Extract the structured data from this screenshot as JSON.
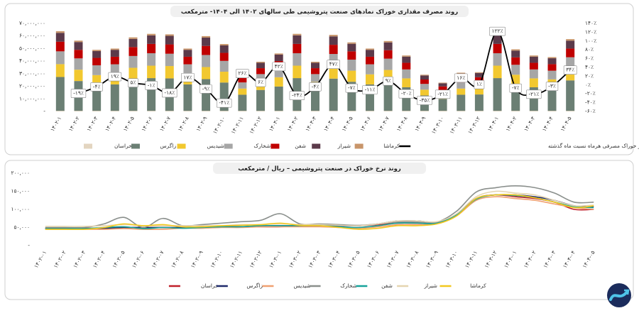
{
  "chart_data": [
    {
      "type": "bar",
      "stacked": true,
      "title": "روند مصرف مقداری خوراک نمادهای صنعت پتروشیمی طی سالهای ۱۴۰۲ الی ۱۴۰۴- مترمکعب",
      "categories": [
        "۱۴۰۲-۱",
        "۱۴۰۲-۲",
        "۱۴۰۲-۳",
        "۱۴۰۲-۴",
        "۱۴۰۲-۵",
        "۱۴۰۲-۶",
        "۱۴۰۲-۷",
        "۱۴۰۲-۸",
        "۱۴۰۲-۹",
        "۱۴۰۲-۱۰",
        "۱۴۰۲-۱۱",
        "۱۴۰۲-۱۲",
        "۱۴۰۳-۱",
        "۱۴۰۳-۲",
        "۱۴۰۳-۳",
        "۱۴۰۳-۴",
        "۱۴۰۳-۵",
        "۱۴۰۳-۶",
        "۱۴۰۳-۷",
        "۱۴۰۳-۸",
        "۱۴۰۳-۹",
        "۱۴۰۳-۱۰",
        "۱۴۰۳-۱۱",
        "۱۴۰۳-۱۲",
        "۱۴۰۴-۱",
        "۱۴۰۴-۲",
        "۱۴۰۴-۳",
        "۱۴۰۴-۴",
        "۱۴۰۴-۵"
      ],
      "series": [
        {
          "name": "خراسان",
          "color": "#e3d5c0",
          "values": [
            500000.0,
            500000.0,
            500000.0,
            500000.0,
            500000.0,
            500000.0,
            500000.0,
            500000.0,
            500000.0,
            500000.0,
            500000.0,
            500000.0,
            500000.0,
            500000.0,
            500000.0,
            500000.0,
            500000.0,
            500000.0,
            500000.0,
            500000.0,
            500000.0,
            500000.0,
            500000.0,
            500000.0,
            500000.0,
            500000.0,
            500000.0,
            500000.0,
            500000.0
          ]
        },
        {
          "name": "زاگرس",
          "color": "#6b7f74",
          "values": [
            26900000.0,
            23700000.0,
            20600000.0,
            21000000.0,
            24800000.0,
            26000000.0,
            25800000.0,
            21000000.0,
            25200000.0,
            22500000.0,
            12800000.0,
            16600000.0,
            19300000.0,
            26000000.0,
            16600000.0,
            25600000.0,
            23100000.0,
            21000000.0,
            23500000.0,
            18700000.0,
            12200000.0,
            9500000.0,
            12800000.0,
            13000000.0,
            26000000.0,
            20800000.0,
            18700000.0,
            18100000.0,
            24200000.0
          ]
        },
        {
          "name": "شیدیس",
          "color": "#f2c82f",
          "values": [
            10200000.0,
            9000000.0,
            7800000.0,
            8000000.0,
            9400000.0,
            9900000.0,
            9800000.0,
            8000000.0,
            9600000.0,
            8600000.0,
            4900000.0,
            6300000.0,
            7400000.0,
            9900000.0,
            6300000.0,
            9800000.0,
            8800000.0,
            8000000.0,
            9000000.0,
            7100000.0,
            4600000.0,
            3600000.0,
            4900000.0,
            5000000.0,
            9900000.0,
            7900000.0,
            7100000.0,
            6900000.0,
            9200000.0
          ]
        },
        {
          "name": "شخارک",
          "color": "#a6a6a6",
          "values": [
            10200000.0,
            9000000.0,
            7800000.0,
            8000000.0,
            9400000.0,
            9900000.0,
            9800000.0,
            8000000.0,
            9600000.0,
            8600000.0,
            4900000.0,
            6300000.0,
            7400000.0,
            9900000.0,
            6300000.0,
            9800000.0,
            8800000.0,
            8000000.0,
            9000000.0,
            7100000.0,
            4600000.0,
            3600000.0,
            4900000.0,
            5000000.0,
            9900000.0,
            7900000.0,
            7100000.0,
            6900000.0,
            9200000.0
          ]
        },
        {
          "name": "شفن",
          "color": "#c00000",
          "values": [
            7700000.0,
            6800000.0,
            5900000.0,
            6000000.0,
            7100000.0,
            7400000.0,
            7400000.0,
            6000000.0,
            7200000.0,
            6400000.0,
            3700000.0,
            4700000.0,
            5500000.0,
            7400000.0,
            4700000.0,
            7300000.0,
            6600000.0,
            6000000.0,
            6700000.0,
            5300000.0,
            3500000.0,
            2700000.0,
            3700000.0,
            3700000.0,
            7400000.0,
            5900000.0,
            5300000.0,
            5200000.0,
            6900000.0
          ]
        },
        {
          "name": "شیراز",
          "color": "#5b3a4a",
          "values": [
            7000000.0,
            6200000.0,
            5400000.0,
            5500000.0,
            6500000.0,
            6800000.0,
            6800000.0,
            5500000.0,
            6600000.0,
            5900000.0,
            3400000.0,
            4300000.0,
            5100000.0,
            6800000.0,
            4300000.0,
            6700000.0,
            6000000.0,
            5500000.0,
            6200000.0,
            4900000.0,
            3200000.0,
            2500000.0,
            3400000.0,
            3400000.0,
            6800000.0,
            5400000.0,
            4900000.0,
            4700000.0,
            6300000.0
          ]
        },
        {
          "name": "کرماشا",
          "color": "#c8956a",
          "values": [
            1300000.0,
            1100000.0,
            1000000.0,
            1000000.0,
            1200000.0,
            1200000.0,
            1200000.0,
            1000000.0,
            1200000.0,
            1100000.0,
            600000.0,
            800000.0,
            900000.0,
            1200000.0,
            800000.0,
            1200000.0,
            1100000.0,
            1000000.0,
            1100000.0,
            900000.0,
            600000.0,
            500000.0,
            600000.0,
            600000.0,
            1200000.0,
            1000000.0,
            900000.0,
            900000.0,
            1200000.0
          ]
        },
        {
          "name": "درصد تغییرات مقدار خوراک مصرفی هرماه نسبت ماه گذشته",
          "color": "#000000",
          "type": "line",
          "axis": "y2",
          "values": [
            null,
            -19,
            -4,
            19,
            5,
            -1,
            -18,
            17,
            -9,
            -41,
            26,
            6,
            42,
            -24,
            -4,
            47,
            -7,
            -11,
            9,
            -20,
            -35,
            -21,
            16,
            1,
            122,
            -7,
            -21,
            -3,
            34
          ],
          "value_labels": [
            null,
            "-۱۹٪",
            "-۴٪",
            "۱۹٪",
            "۵٪",
            "-۱٪",
            "-۱۸٪",
            "۱۷٪",
            "-۹٪",
            "-۴۱٪",
            "۲۶٪",
            "۶٪",
            "۴۲٪",
            "-۲۴٪",
            "-۴٪",
            "۴۷٪",
            "-۷٪",
            "-۱۱٪",
            "۹٪",
            "-۲۰٪",
            "-۳۵٪",
            "-۲۱٪",
            "۱۶٪",
            "۱٪",
            "۱۲۲٪",
            "-۷٪",
            "-۲۱٪",
            "-۳٪",
            "۳۴٪"
          ]
        }
      ],
      "ylim": [
        0,
        70000000
      ],
      "yticks": [
        {
          "value": 0,
          "label": "-"
        },
        {
          "value": 10000000,
          "label": "۱۰,۰۰۰,۰۰۰"
        },
        {
          "value": 20000000,
          "label": "۲۰,۰۰۰,۰۰۰"
        },
        {
          "value": 30000000,
          "label": "۳۰,۰۰۰,۰۰۰"
        },
        {
          "value": 40000000,
          "label": "۴۰,۰۰۰,۰۰۰"
        },
        {
          "value": 50000000,
          "label": "۵۰,۰۰۰,۰۰۰"
        },
        {
          "value": 60000000,
          "label": "۶۰,۰۰۰,۰۰۰"
        },
        {
          "value": 70000000,
          "label": "۷۰,۰۰۰,۰۰۰"
        }
      ],
      "y2lim": [
        -60,
        140
      ],
      "y2ticks": [
        {
          "value": -60,
          "label": "-۶۰٪"
        },
        {
          "value": -40,
          "label": "-۴۰٪"
        },
        {
          "value": -20,
          "label": "-۲۰٪"
        },
        {
          "value": 0,
          "label": "۰٪"
        },
        {
          "value": 20,
          "label": "۲۰٪"
        },
        {
          "value": 40,
          "label": "۴۰٪"
        },
        {
          "value": 60,
          "label": "۶۰٪"
        },
        {
          "value": 80,
          "label": "۸۰٪"
        },
        {
          "value": 100,
          "label": "۱۰۰٪"
        },
        {
          "value": 120,
          "label": "۱۲۰٪"
        },
        {
          "value": 140,
          "label": "۱۴۰٪"
        }
      ],
      "grid": false,
      "legend": "bottom"
    },
    {
      "type": "line",
      "title": "روند نرخ خوراک در صنعت پتروشیمی – ریال / مترمکعب",
      "categories": [
        "۱۴۰۲-۰۱",
        "۱۴۰۲-۰۲",
        "۱۴۰۲-۰۳",
        "۱۴۰۲-۰۴",
        "۱۴۰۲-۰۵",
        "۱۴۰۲-۰۶",
        "۱۴۰۲-۰۷",
        "۱۴۰۲-۰۸",
        "۱۴۰۲-۰۹",
        "۱۴۰۲-۱۰",
        "۱۴۰۲-۱۱",
        "۱۴۰۲-۱۲",
        "۱۴۰۳-۰۱",
        "۱۴۰۳-۰۲",
        "۱۴۰۳-۰۳",
        "۱۴۰۳-۰۴",
        "۱۴۰۳-۰۵",
        "۱۴۰۳-۰۶",
        "۱۴۰۳-۰۷",
        "۱۴۰۳-۰۸",
        "۱۴۰۳-۰۹",
        "۱۴۰۳-۱۰",
        "۱۴۰۳-۱۱",
        "۱۴۰۳-۱۲",
        "۱۴۰۴-۰۱",
        "۱۴۰۴-۰۲",
        "۱۴۰۴-۰۳",
        "۱۴۰۴-۰۴",
        "۱۴۰۴-۰۵"
      ],
      "series": [
        {
          "name": "خراسان",
          "color": "#c0202a",
          "values": [
            48000.0,
            48000.0,
            48000.0,
            48000.0,
            50000.0,
            50000.0,
            50000.0,
            50000.0,
            50000.0,
            52000.0,
            52000.0,
            52000.0,
            52000.0,
            55000.0,
            55000.0,
            55000.0,
            55000.0,
            58000.0,
            62000.0,
            62000.0,
            62000.0,
            85000.0,
            130000.0,
            140000.0,
            135000.0,
            130000.0,
            120000.0,
            100000.0,
            100000.0
          ]
        },
        {
          "name": "زاگرس",
          "color": "#1f2a6b",
          "values": [
            47000.0,
            47000.0,
            47000.0,
            47000.0,
            50000.0,
            50000.0,
            50000.0,
            50000.0,
            52000.0,
            52000.0,
            52000.0,
            55000.0,
            55000.0,
            55000.0,
            55000.0,
            55000.0,
            55000.0,
            60000.0,
            68000.0,
            68000.0,
            65000.0,
            85000.0,
            130000.0,
            140000.0,
            140000.0,
            135000.0,
            125000.0,
            110000.0,
            108000.0
          ]
        },
        {
          "name": "شیدیس",
          "color": "#f0a070",
          "values": [
            45000.0,
            45000.0,
            45000.0,
            45000.0,
            47000.0,
            45000.0,
            45000.0,
            48000.0,
            48000.0,
            50000.0,
            50000.0,
            52000.0,
            52000.0,
            52000.0,
            52000.0,
            50000.0,
            48000.0,
            52000.0,
            58000.0,
            58000.0,
            60000.0,
            82000.0,
            125000.0,
            135000.0,
            130000.0,
            125000.0,
            115000.0,
            105000.0,
            100000.0
          ]
        },
        {
          "name": "شخارک",
          "color": "#8a8f8c",
          "values": [
            50000.0,
            50000.0,
            50000.0,
            60000.0,
            78000.0,
            50000.0,
            75000.0,
            55000.0,
            58000.0,
            62000.0,
            66000.0,
            70000.0,
            88000.0,
            60000.0,
            60000.0,
            58000.0,
            56000.0,
            60000.0,
            65000.0,
            65000.0,
            65000.0,
            95000.0,
            148000.0,
            160000.0,
            165000.0,
            160000.0,
            145000.0,
            120000.0,
            120000.0
          ]
        },
        {
          "name": "شفن",
          "color": "#16a39a",
          "values": [
            47000.0,
            47000.0,
            47000.0,
            50000.0,
            52000.0,
            47000.0,
            50000.0,
            48000.0,
            50000.0,
            52000.0,
            52000.0,
            55000.0,
            55000.0,
            55000.0,
            55000.0,
            52000.0,
            50000.0,
            55000.0,
            62000.0,
            62000.0,
            62000.0,
            85000.0,
            128000.0,
            140000.0,
            138000.0,
            132000.0,
            120000.0,
            108000.0,
            105000.0
          ]
        },
        {
          "name": "شیراز",
          "color": "#e5d5b0",
          "values": [
            53000.0,
            53000.0,
            53000.0,
            55000.0,
            58000.0,
            55000.0,
            55000.0,
            55000.0,
            55000.0,
            55000.0,
            58000.0,
            58000.0,
            60000.0,
            58000.0,
            58000.0,
            56000.0,
            55000.0,
            60000.0,
            68000.0,
            68000.0,
            66000.0,
            88000.0,
            135000.0,
            150000.0,
            145000.0,
            140000.0,
            125000.0,
            110000.0,
            112000.0
          ]
        },
        {
          "name": "کرماشا",
          "color": "#f2c81e",
          "values": [
            45000.0,
            45000.0,
            45000.0,
            50000.0,
            60000.0,
            55000.0,
            58000.0,
            52000.0,
            52000.0,
            55000.0,
            56000.0,
            58000.0,
            62000.0,
            56000.0,
            55000.0,
            50000.0,
            45000.0,
            48000.0,
            55000.0,
            55000.0,
            60000.0,
            82000.0,
            130000.0,
            140000.0,
            140000.0,
            132000.0,
            120000.0,
            105000.0,
            110000.0
          ]
        }
      ],
      "ylim": [
        0,
        200000
      ],
      "yticks": [
        {
          "value": 0,
          "label": "-"
        },
        {
          "value": 50000,
          "label": "۵۰,۰۰۰"
        },
        {
          "value": 100000,
          "label": "۱۰۰,۰۰۰"
        },
        {
          "value": 150000,
          "label": "۱۵۰,۰۰۰"
        },
        {
          "value": 200000,
          "label": "۲۰۰,۰۰۰"
        }
      ],
      "grid": false,
      "legend": "bottom"
    }
  ]
}
